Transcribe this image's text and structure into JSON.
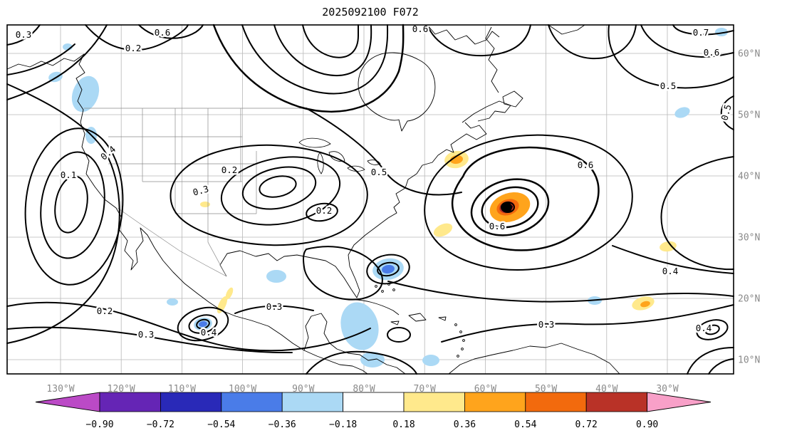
{
  "title": "2025092100 F072",
  "map": {
    "x_tick_labels": [
      "130°W",
      "120°W",
      "110°W",
      "100°W",
      "90°W",
      "80°W",
      "70°W",
      "60°W",
      "50°W",
      "40°W",
      "30°W"
    ],
    "y_tick_labels": [
      "60°N",
      "50°N",
      "40°N",
      "30°N",
      "20°N",
      "10°N"
    ],
    "tick_color": "#8a8a8a",
    "grid_color": "#b8b8b8",
    "contour_labels": [
      "0.3",
      "0.2",
      "0.6",
      "0.6",
      "0.7",
      "0.6",
      "0.5",
      "0.5",
      "0.1",
      "0.4",
      "0.2",
      "0.3",
      "0.5",
      "0.2",
      "0.6",
      "0.6",
      "0.2",
      "0.3",
      "0.4",
      "0.3",
      "0.3",
      "0.4",
      "0.4"
    ]
  },
  "colorbar": {
    "tick_labels": [
      "−0.90",
      "−0.72",
      "−0.54",
      "−0.36",
      "−0.18",
      "0.18",
      "0.36",
      "0.54",
      "0.72",
      "0.90"
    ],
    "segment_colors": [
      "#6525b5",
      "#2929b8",
      "#4a7ce8",
      "#abd9f5",
      "#ffffff",
      "#ffe98c",
      "#ffa41c",
      "#f26a0d",
      "#b93227"
    ],
    "arrow_left_color": "#bb4ac6",
    "arrow_right_color": "#f8a0c8"
  },
  "chart_data": {
    "type": "contour",
    "title": "2025092100 F072",
    "x_axis": {
      "tick_labels": [
        "130°W",
        "120°W",
        "110°W",
        "100°W",
        "90°W",
        "80°W",
        "70°W",
        "60°W",
        "50°W",
        "40°W",
        "30°W"
      ],
      "range_approx_deg_west": [
        139,
        19
      ]
    },
    "y_axis": {
      "tick_labels": [
        "10°N",
        "20°N",
        "30°N",
        "40°N",
        "50°N",
        "60°N"
      ],
      "range_approx_deg_north": [
        7,
        64
      ]
    },
    "grid": true,
    "line_contours": {
      "color": "#000000",
      "labeled_levels": [
        0.1,
        0.2,
        0.3,
        0.4,
        0.5,
        0.6,
        0.7
      ]
    },
    "shading": {
      "boundaries": [
        -0.9,
        -0.72,
        -0.54,
        -0.36,
        -0.18,
        0.18,
        0.36,
        0.54,
        0.72,
        0.9
      ],
      "colors": [
        "#bb4ac6",
        "#6525b5",
        "#2929b8",
        "#4a7ce8",
        "#abd9f5",
        "#ffffff",
        "#ffe98c",
        "#ffa41c",
        "#f26a0d",
        "#b93227",
        "#f8a0c8"
      ],
      "extend": "both"
    },
    "features": [
      {
        "description": "intense closed positive maximum with black center marker (tropical cyclone position)",
        "lon_approx": -55,
        "lat_approx": 35,
        "peak_bin": "> 0.72"
      },
      {
        "description": "positive patch northeast of cyclone",
        "lon_approx": -63,
        "lat_approx": 41,
        "peak_bin": "0.36 to 0.54"
      },
      {
        "description": "negative patch Pacific Northwest coast",
        "lon_approx": -125,
        "lat_approx": 49,
        "peak_bin": "-0.36 to -0.18"
      },
      {
        "description": "negative patch near Bahamas/Florida Straits",
        "lon_approx": -80,
        "lat_approx": 25,
        "peak_bin": "-0.54 to -0.36"
      },
      {
        "description": "negative patch off southwest Mexico",
        "lon_approx": -107,
        "lat_approx": 16,
        "peak_bin": "-0.54 to -0.36"
      },
      {
        "description": "broad weak negative area over Central America",
        "lon_approx": -84,
        "lat_approx": 14,
        "peak_bin": "-0.36 to -0.18"
      },
      {
        "description": "positive patch central subtropical Atlantic",
        "lon_approx": -38,
        "lat_approx": 21,
        "peak_bin": "0.36 to 0.54"
      },
      {
        "description": "positive patch south of cyclone",
        "lon_approx": -66,
        "lat_approx": 31,
        "peak_bin": "0.18 to 0.36"
      }
    ]
  }
}
